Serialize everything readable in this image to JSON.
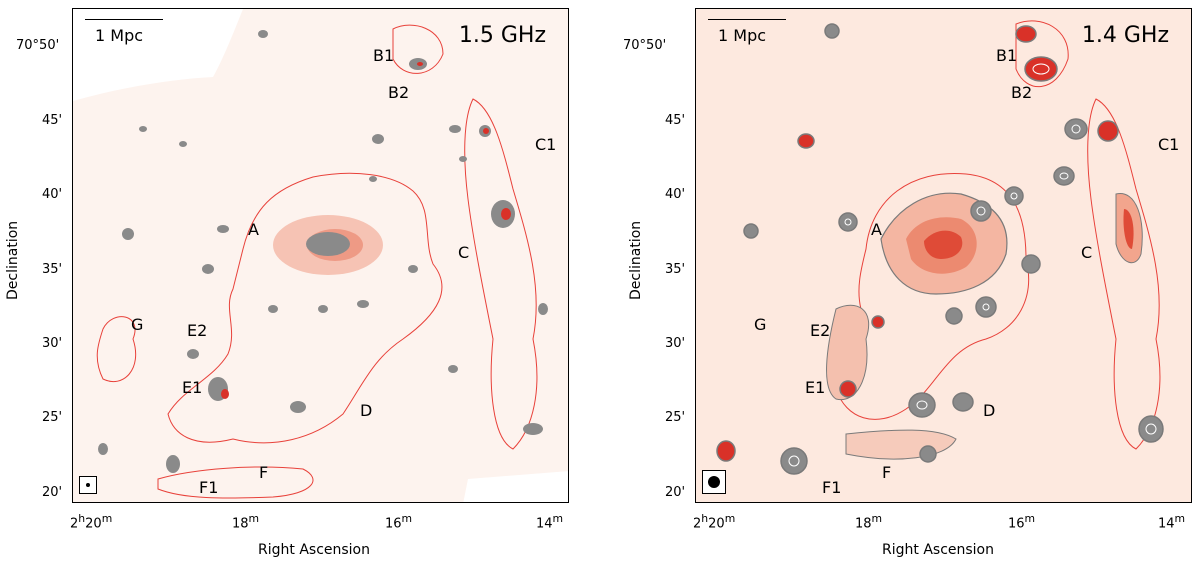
{
  "left_panel": {
    "frequency": "1.5 GHz",
    "scalebar": "1 Mpc",
    "labels": {
      "A": "A",
      "B1": "B1",
      "B2": "B2",
      "C": "C",
      "C1": "C1",
      "D": "D",
      "E1": "E1",
      "E2": "E2",
      "F": "F",
      "F1": "F1",
      "G": "G"
    }
  },
  "right_panel": {
    "frequency": "1.4 GHz",
    "scalebar": "1 Mpc",
    "labels": {
      "A": "A",
      "B1": "B1",
      "B2": "B2",
      "C": "C",
      "C1": "C1",
      "D": "D",
      "E1": "E1",
      "E2": "E2",
      "F": "F",
      "F1": "F1",
      "G": "G"
    }
  },
  "axes": {
    "x_title": "Right Ascension",
    "y_title": "Declination",
    "x_ticks": [
      {
        "pre": "2",
        "sup1": "h",
        "mid": "20",
        "sup2": "m"
      },
      {
        "pre": "",
        "sup1": "",
        "mid": "18",
        "sup2": "m"
      },
      {
        "pre": "",
        "sup1": "",
        "mid": "16",
        "sup2": "m"
      },
      {
        "pre": "",
        "sup1": "",
        "mid": "14",
        "sup2": "m"
      }
    ],
    "y_ticks": [
      "70°50'",
      "45'",
      "40'",
      "35'",
      "30'",
      "25'",
      "20'"
    ]
  },
  "colors": {
    "contour": "#e8413a",
    "grey_contour": "#7a7a7a",
    "peak": "#d93128"
  }
}
